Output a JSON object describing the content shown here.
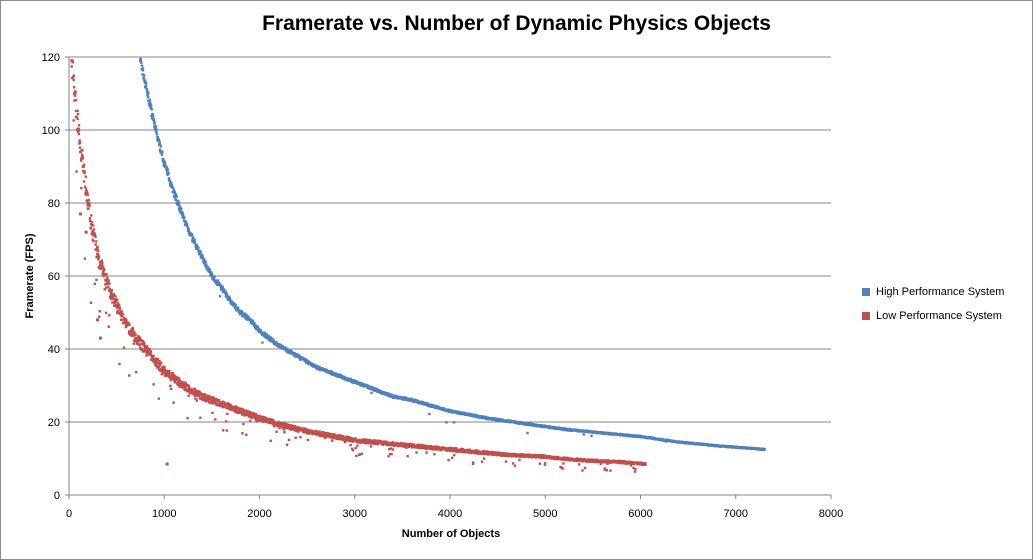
{
  "chart_data": {
    "type": "scatter",
    "title": "Framerate vs. Number of Dynamic Physics Objects",
    "xlabel": "Number of Objects",
    "ylabel": "Framerate (FPS)",
    "xlim": [
      0,
      8000
    ],
    "ylim": [
      0,
      120
    ],
    "xticks": [
      "0",
      "1000",
      "2000",
      "3000",
      "4000",
      "5000",
      "6000",
      "7000",
      "8000"
    ],
    "yticks": [
      "0",
      "20",
      "40",
      "60",
      "80",
      "100",
      "120"
    ],
    "grid": "horizontal major gridlines",
    "legend_position": "right",
    "series": [
      {
        "name": "High Performance System",
        "color": "#4f81bd",
        "x": [
          750,
          800,
          850,
          900,
          950,
          1000,
          1100,
          1200,
          1300,
          1400,
          1500,
          1600,
          1700,
          1800,
          1900,
          2000,
          2200,
          2400,
          2600,
          2800,
          3000,
          3200,
          3400,
          3600,
          3800,
          4000,
          4400,
          4800,
          5200,
          5600,
          6000,
          6400,
          6800,
          7300
        ],
        "y": [
          119,
          113,
          107,
          101,
          96,
          91,
          83,
          76,
          70,
          65,
          60,
          57,
          53,
          50,
          48,
          45,
          41,
          38,
          35,
          33,
          31,
          29,
          27,
          26,
          24.5,
          23,
          21,
          19.5,
          18,
          17,
          16,
          14.5,
          13.5,
          12.5
        ]
      },
      {
        "name": "Low Performance System",
        "color": "#c0504d",
        "x": [
          30,
          60,
          100,
          150,
          200,
          250,
          300,
          400,
          500,
          600,
          700,
          800,
          900,
          1000,
          1200,
          1400,
          1600,
          1800,
          2000,
          2200,
          2400,
          2600,
          2800,
          3000,
          3400,
          3800,
          4200,
          4600,
          5000,
          5400,
          5800,
          6050
        ],
        "y": [
          119,
          110,
          100,
          90,
          80,
          72,
          66,
          58,
          52,
          47,
          43,
          40,
          37,
          34,
          30,
          27,
          25,
          23,
          21,
          19.5,
          18,
          17,
          16,
          15,
          14,
          13,
          12,
          11,
          10.5,
          9.5,
          9,
          8.5
        ]
      }
    ]
  }
}
